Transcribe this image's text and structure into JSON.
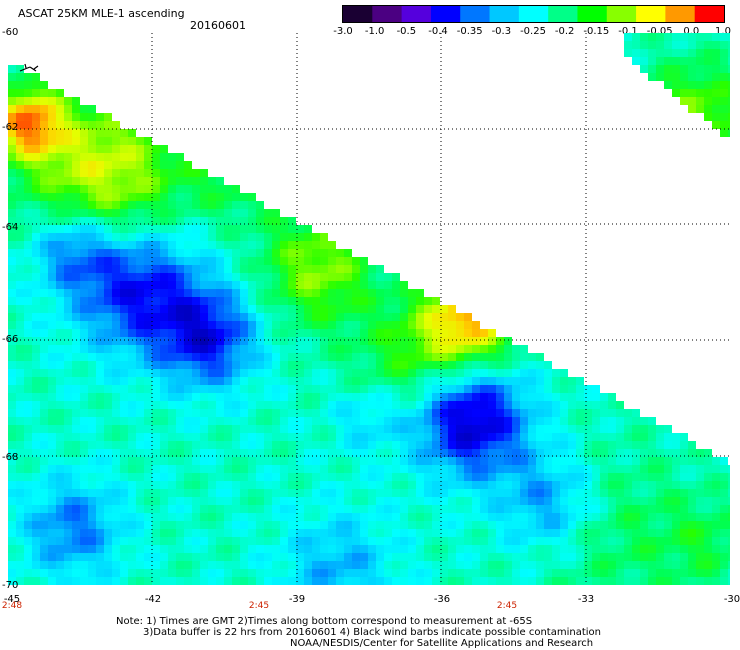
{
  "title": "ASCAT 25KM MLE-1 ascending",
  "date": "20160601",
  "colorbar": {
    "labels": [
      "-3.0",
      "-1.0",
      "-0.5",
      "-0.4",
      "-0.35",
      "-0.3",
      "-0.25",
      "-0.2",
      "-0.15",
      "-0.1",
      "-0.05",
      "0.0",
      "1.0"
    ],
    "colors": [
      "#1a0033",
      "#4b0082",
      "#5500dd",
      "#0000ff",
      "#0077ff",
      "#00c8ff",
      "#00ffff",
      "#00ff88",
      "#00ff00",
      "#88ff00",
      "#ffff00",
      "#ff9900",
      "#ff0000"
    ]
  },
  "axes": {
    "lat_labels": [
      "-60",
      "-62",
      "-64",
      "-66",
      "-68",
      "-70"
    ],
    "lon_labels": [
      "-45",
      "-42",
      "-39",
      "-36",
      "-33",
      "-30"
    ],
    "time_labels": [
      "2:48",
      "2:45",
      "2:45"
    ]
  },
  "notes": [
    "Note: 1) Times are GMT 2)Times along bottom correspond to measurement at -65S",
    "3)Data buffer is 22 hrs from 20160601 4) Black wind barbs indicate possible contamination",
    "NOAA/NESDIS/Center for Satellite Applications and Research"
  ],
  "map_data": {
    "lon_range": [
      -45,
      -30
    ],
    "lat_range": [
      -70,
      -60
    ],
    "grid": "dotted"
  }
}
